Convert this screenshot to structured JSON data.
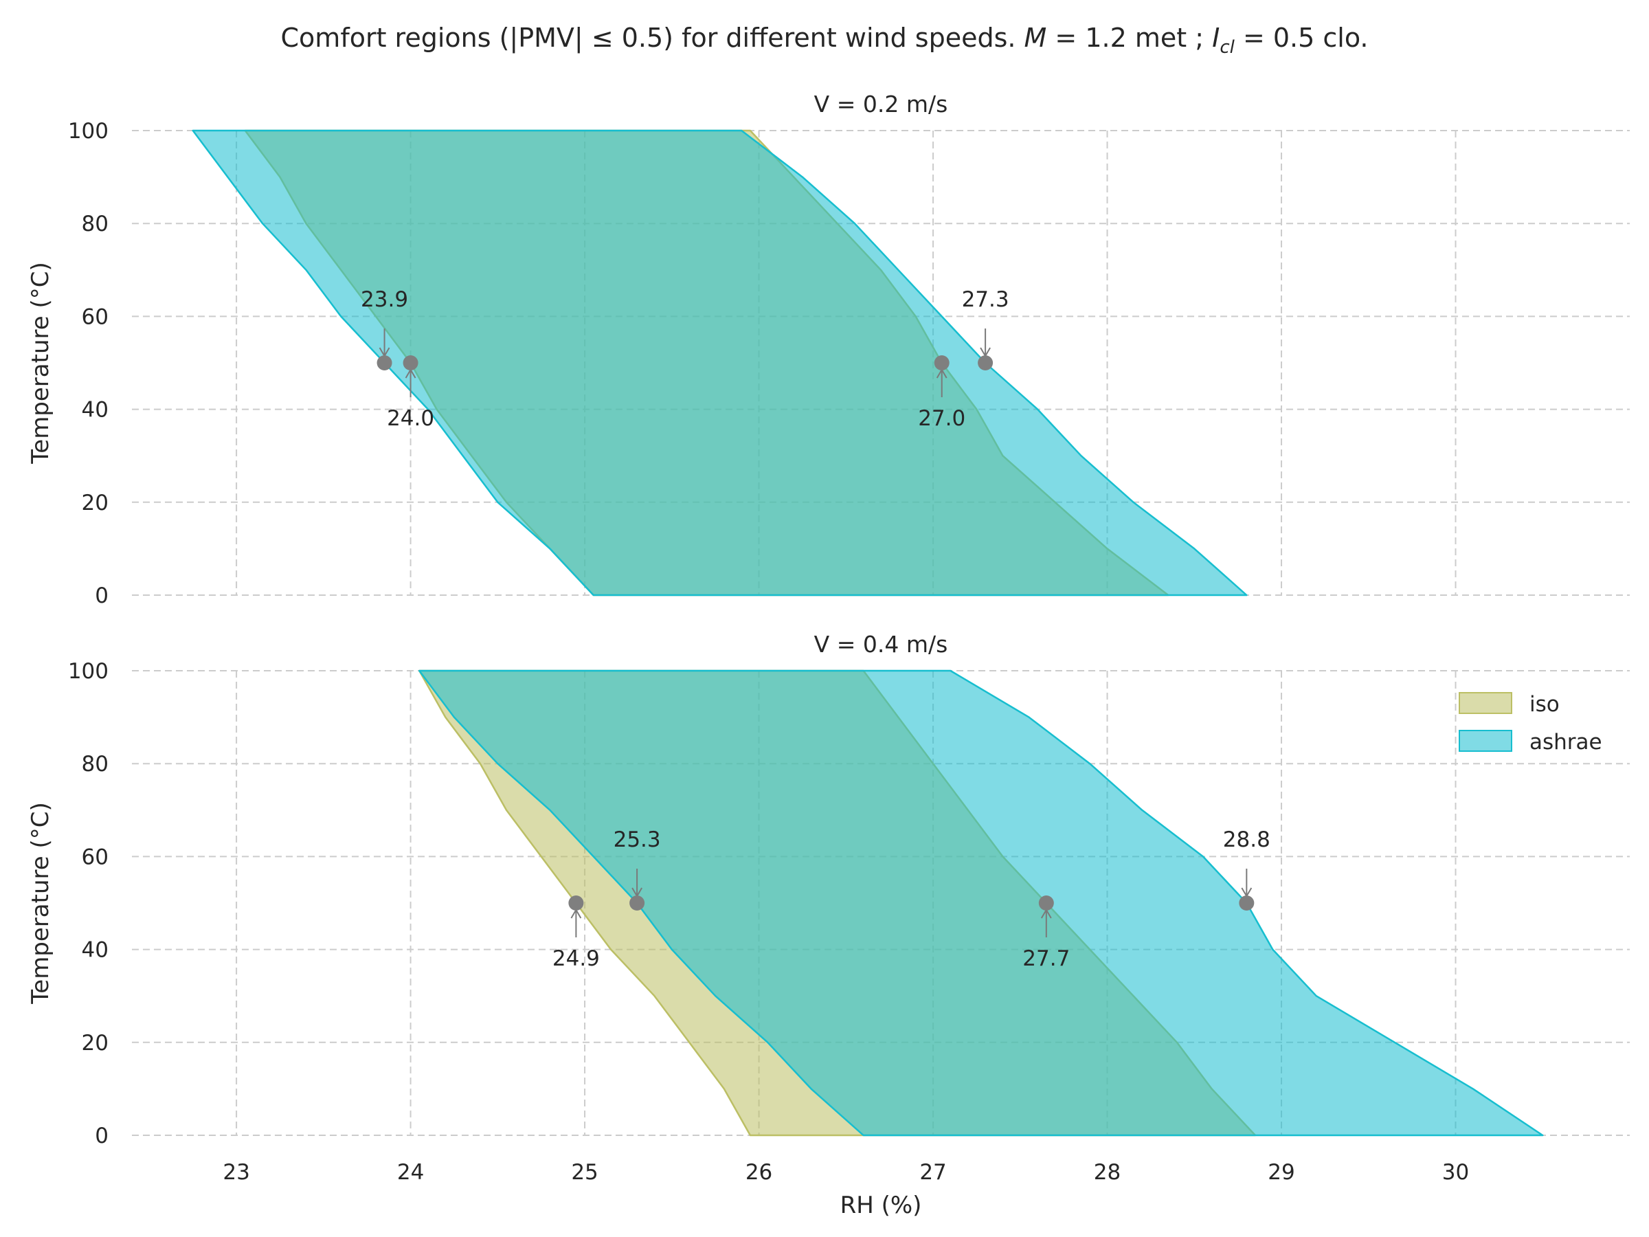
{
  "chart_data": {
    "type": "area",
    "suptitle": {
      "prefix": "Comfort regions (|PMV| ",
      "le": "≤",
      "mid": " 0.5) for different wind speeds. ",
      "M": "M",
      "after_M": " = 1.2 met ; ",
      "I": "I",
      "cl": "cl",
      "after_I": " = 0.5 clo."
    },
    "xlabel": "RH (%)",
    "ylabel": "Temperature (°C)",
    "xlim": [
      22.4,
      31.0
    ],
    "ylim": [
      0,
      100
    ],
    "xticks": [
      23,
      24,
      25,
      26,
      27,
      28,
      29,
      30
    ],
    "yticks": [
      0,
      20,
      40,
      60,
      80,
      100
    ],
    "grid": true,
    "legend_position": "upper-right",
    "legend": [
      {
        "name": "iso",
        "color": "#bcbf65"
      },
      {
        "name": "ashrae",
        "color": "#17becf"
      }
    ],
    "subplots": [
      {
        "title": "V = 0.2 m/s",
        "series": [
          {
            "name": "iso",
            "color": "#bcbf65",
            "humidity": [
              0,
              10,
              20,
              30,
              40,
              50,
              60,
              70,
              80,
              90,
              100
            ],
            "t_min": [
              25.05,
              24.8,
              24.55,
              24.35,
              24.15,
              24.0,
              23.8,
              23.6,
              23.4,
              23.25,
              23.05
            ],
            "t_max": [
              28.35,
              28.0,
              27.7,
              27.4,
              27.25,
              27.05,
              26.9,
              26.7,
              26.45,
              26.2,
              25.95
            ]
          },
          {
            "name": "ashrae",
            "color": "#17becf",
            "humidity": [
              0,
              10,
              20,
              30,
              40,
              50,
              60,
              70,
              80,
              90,
              100
            ],
            "t_min": [
              25.05,
              24.8,
              24.5,
              24.3,
              24.1,
              23.85,
              23.6,
              23.4,
              23.15,
              22.95,
              22.75
            ],
            "t_max": [
              28.8,
              28.5,
              28.15,
              27.85,
              27.6,
              27.3,
              27.05,
              26.8,
              26.55,
              26.25,
              25.9
            ]
          }
        ],
        "markers": [
          {
            "x": 23.85,
            "y": 50,
            "label": "23.9",
            "label_side": "above"
          },
          {
            "x": 24.0,
            "y": 50,
            "label": "24.0",
            "label_side": "below"
          },
          {
            "x": 27.05,
            "y": 50,
            "label": "27.0",
            "label_side": "below"
          },
          {
            "x": 27.3,
            "y": 50,
            "label": "27.3",
            "label_side": "above"
          }
        ]
      },
      {
        "title": "V = 0.4 m/s",
        "series": [
          {
            "name": "iso",
            "color": "#bcbf65",
            "humidity": [
              0,
              10,
              20,
              30,
              40,
              50,
              60,
              70,
              80,
              90,
              100
            ],
            "t_min": [
              25.95,
              25.8,
              25.6,
              25.4,
              25.15,
              24.95,
              24.75,
              24.55,
              24.4,
              24.2,
              24.05
            ],
            "t_max": [
              28.85,
              28.6,
              28.4,
              28.15,
              27.9,
              27.65,
              27.4,
              27.2,
              27.0,
              26.8,
              26.6
            ]
          },
          {
            "name": "ashrae",
            "color": "#17becf",
            "humidity": [
              0,
              10,
              20,
              30,
              40,
              50,
              60,
              70,
              80,
              90,
              100
            ],
            "t_min": [
              26.6,
              26.3,
              26.05,
              25.75,
              25.5,
              25.3,
              25.05,
              24.8,
              24.5,
              24.25,
              24.05
            ],
            "t_max": [
              30.5,
              30.1,
              29.65,
              29.2,
              28.95,
              28.8,
              28.55,
              28.2,
              27.9,
              27.55,
              27.1
            ]
          }
        ],
        "markers": [
          {
            "x": 24.95,
            "y": 50,
            "label": "24.9",
            "label_side": "below"
          },
          {
            "x": 25.3,
            "y": 50,
            "label": "25.3",
            "label_side": "above"
          },
          {
            "x": 27.65,
            "y": 50,
            "label": "27.7",
            "label_side": "below"
          },
          {
            "x": 28.8,
            "y": 50,
            "label": "28.8",
            "label_side": "above"
          }
        ]
      }
    ]
  }
}
